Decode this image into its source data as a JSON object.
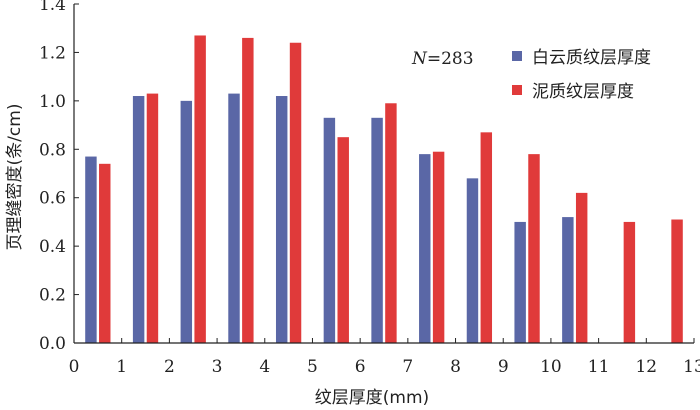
{
  "chart_data": {
    "type": "bar",
    "xlabel": "纹层厚度(mm)",
    "ylabel": "页理缝密度(条/cm)",
    "xlim": [
      0,
      13
    ],
    "ylim": [
      0,
      1.4
    ],
    "x_ticks": [
      "0",
      "1",
      "2",
      "3",
      "4",
      "5",
      "6",
      "7",
      "8",
      "9",
      "10",
      "11",
      "12",
      "13"
    ],
    "y_ticks": [
      "0.0",
      "0.2",
      "0.4",
      "0.6",
      "0.8",
      "1.0",
      "1.2",
      "1.4"
    ],
    "annotation_prefix": "N",
    "annotation_value": "=283",
    "legend_position": "top-right",
    "colors": {
      "dolomitic": "#5a67a6",
      "mud": "#e03a3a"
    },
    "series": [
      {
        "name": "白云质纹层厚度",
        "x": [
          0.5,
          1.5,
          2.5,
          3.5,
          4.5,
          5.5,
          6.5,
          7.5,
          8.5,
          9.5,
          10.5
        ],
        "values": [
          0.77,
          1.02,
          1.0,
          1.03,
          1.02,
          0.93,
          0.93,
          0.78,
          0.68,
          0.5,
          0.52
        ]
      },
      {
        "name": "泥质纹层厚度",
        "x": [
          0.5,
          1.5,
          2.5,
          3.5,
          4.5,
          5.5,
          6.5,
          7.5,
          8.5,
          9.5,
          10.5,
          11.5,
          12.5
        ],
        "values": [
          0.74,
          1.03,
          1.27,
          1.26,
          1.24,
          0.85,
          0.99,
          0.79,
          0.87,
          0.78,
          0.62,
          0.5,
          0.51
        ]
      }
    ]
  }
}
